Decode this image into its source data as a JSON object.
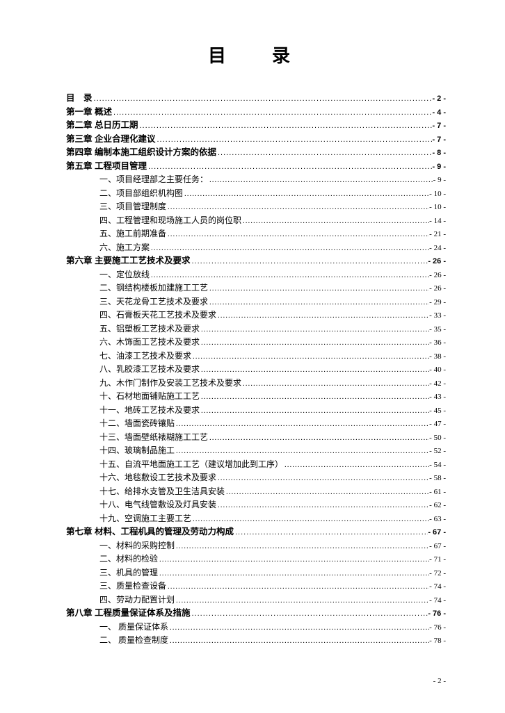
{
  "title": "目　录",
  "footer_page": "- 2 -",
  "entries": [
    {
      "label": "目　录",
      "page": "- 2 -",
      "bold": true,
      "indent": false
    },
    {
      "label": "第一章  概述",
      "page": "- 4 -",
      "bold": true,
      "indent": false
    },
    {
      "label": "第二章  总日历工期",
      "page": "- 7 -",
      "bold": true,
      "indent": false
    },
    {
      "label": "第三章  企业合理化建议",
      "page": "- 7 -",
      "bold": true,
      "indent": false
    },
    {
      "label": "第四章  编制本施工组织设计方案的依据",
      "page": "- 8 -",
      "bold": true,
      "indent": false
    },
    {
      "label": "第五章  工程项目管理",
      "page": "- 9 -",
      "bold": true,
      "indent": false
    },
    {
      "label": "一、项目经理部之主要任务：",
      "page": "- 9 -",
      "bold": false,
      "indent": true
    },
    {
      "label": "二、项目部组织机构图",
      "page": "- 10 -",
      "bold": false,
      "indent": true
    },
    {
      "label": "三、项目管理制度",
      "page": "- 10 -",
      "bold": false,
      "indent": true
    },
    {
      "label": "四、工程管理和现场施工人员的岗位职",
      "page": "- 14 -",
      "bold": false,
      "indent": true
    },
    {
      "label": "五、施工前期准备",
      "page": "- 21 -",
      "bold": false,
      "indent": true
    },
    {
      "label": "六、施工方案",
      "page": "- 24 -",
      "bold": false,
      "indent": true
    },
    {
      "label": "第六章  主要施工工艺技术及要求",
      "page": "- 26 -",
      "bold": true,
      "indent": false
    },
    {
      "label": "一、定位放线",
      "page": "- 26 -",
      "bold": false,
      "indent": true
    },
    {
      "label": "二、钢结构楼板加建施工工艺",
      "page": "- 26 -",
      "bold": false,
      "indent": true
    },
    {
      "label": "三、天花龙骨工艺技术及要求",
      "page": "- 29 -",
      "bold": false,
      "indent": true
    },
    {
      "label": "四、石膏板天花工艺技术及要求",
      "page": "- 33 -",
      "bold": false,
      "indent": true
    },
    {
      "label": "五、铝塑板工艺技术及要求",
      "page": "- 35 -",
      "bold": false,
      "indent": true
    },
    {
      "label": "六、木饰面工艺技术及要求",
      "page": "- 36 -",
      "bold": false,
      "indent": true
    },
    {
      "label": "七、油漆工艺技术及要求",
      "page": "- 38 -",
      "bold": false,
      "indent": true
    },
    {
      "label": "八、乳胶漆工艺技术及要求",
      "page": "- 40 -",
      "bold": false,
      "indent": true
    },
    {
      "label": "九、木作门制作及安装工艺技术及要求",
      "page": "- 42 -",
      "bold": false,
      "indent": true
    },
    {
      "label": "十、石材地面铺贴施工工艺",
      "page": "- 43 -",
      "bold": false,
      "indent": true
    },
    {
      "label": "十一、地砖工艺技术及要求",
      "page": "- 45 -",
      "bold": false,
      "indent": true
    },
    {
      "label": "十二、墙面瓷砖镶贴",
      "page": "- 47 -",
      "bold": false,
      "indent": true
    },
    {
      "label": "十三、墙面壁纸裱糊施工工艺",
      "page": "- 50 -",
      "bold": false,
      "indent": true
    },
    {
      "label": "十四、玻璃制品施工",
      "page": "- 52 -",
      "bold": false,
      "indent": true
    },
    {
      "label": "十五、自流平地面施工工艺（建议增加此到工序）",
      "page": "- 54 -",
      "bold": false,
      "indent": true
    },
    {
      "label": "十六、地毯敷设工艺技术及要求",
      "page": "- 58 -",
      "bold": false,
      "indent": true
    },
    {
      "label": "十七、给排水支管及卫生洁具安装",
      "page": "- 61 -",
      "bold": false,
      "indent": true
    },
    {
      "label": "十八、电气线管敷设及灯具安装",
      "page": "- 62 -",
      "bold": false,
      "indent": true
    },
    {
      "label": "十九、空调施工主要工艺",
      "page": "- 63 -",
      "bold": false,
      "indent": true
    },
    {
      "label": "第七章  材料、工程机具的管理及劳动力构成",
      "page": "- 67 -",
      "bold": true,
      "indent": false
    },
    {
      "label": "一、材料的采购控制",
      "page": "- 67 -",
      "bold": false,
      "indent": true
    },
    {
      "label": "二、材料的检验",
      "page": "- 71 -",
      "bold": false,
      "indent": true
    },
    {
      "label": "三、机具的管理",
      "page": "- 72 -",
      "bold": false,
      "indent": true
    },
    {
      "label": "三、质量检查设备",
      "page": "- 74 -",
      "bold": false,
      "indent": true
    },
    {
      "label": "四、劳动力配置计划",
      "page": "- 74 -",
      "bold": false,
      "indent": true
    },
    {
      "label": "第八章  工程质量保证体系及措施",
      "page": "- 76 -",
      "bold": true,
      "indent": false
    },
    {
      "label": "一、 质量保证体系",
      "page": "- 76 -",
      "bold": false,
      "indent": true
    },
    {
      "label": "二、 质量检查制度",
      "page": "- 78 -",
      "bold": false,
      "indent": true
    }
  ]
}
